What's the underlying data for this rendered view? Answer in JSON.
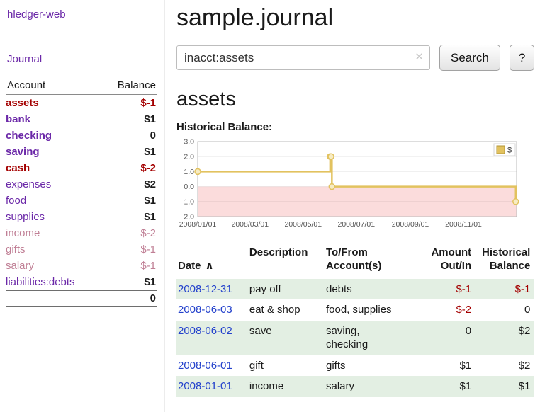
{
  "colors": {
    "purple": "#6b28a8",
    "negative": "#a40000",
    "pink": "#c07f95",
    "text": "#1a1a1a",
    "link_blue": "#2442cc",
    "row_green": "#e3efe3",
    "chart_line": "#e2c25f",
    "chart_marker_fill": "#f7ecc3",
    "chart_negative_fill": "#fbdcdc"
  },
  "sidebar": {
    "brand": "hledger-web",
    "journal_link": "Journal",
    "columns": {
      "account": "Account",
      "balance": "Balance"
    },
    "accounts": [
      {
        "name": "assets",
        "balance": "$-1",
        "indent": 0,
        "bold": true,
        "name_color": "negative",
        "balance_color": "negative",
        "balance_bold": true
      },
      {
        "name": "bank",
        "balance": "$1",
        "indent": 1,
        "bold": true,
        "name_color": "purple",
        "balance_color": "text",
        "balance_bold": true
      },
      {
        "name": "checking",
        "balance": "0",
        "indent": 2,
        "bold": true,
        "name_color": "purple",
        "balance_color": "text",
        "balance_bold": true
      },
      {
        "name": "saving",
        "balance": "$1",
        "indent": 2,
        "bold": true,
        "name_color": "purple",
        "balance_color": "text",
        "balance_bold": true
      },
      {
        "name": "cash",
        "balance": "$-2",
        "indent": 1,
        "bold": true,
        "name_color": "negative",
        "balance_color": "negative",
        "balance_bold": true
      },
      {
        "name": "expenses",
        "balance": "$2",
        "indent": 0,
        "bold": false,
        "name_color": "purple",
        "balance_color": "text",
        "balance_bold": true
      },
      {
        "name": "food",
        "balance": "$1",
        "indent": 1,
        "bold": false,
        "name_color": "purple",
        "balance_color": "text",
        "balance_bold": true
      },
      {
        "name": "supplies",
        "balance": "$1",
        "indent": 1,
        "bold": false,
        "name_color": "purple",
        "balance_color": "text",
        "balance_bold": true
      },
      {
        "name": "income",
        "balance": "$-2",
        "indent": 0,
        "bold": false,
        "name_color": "pink",
        "balance_color": "pink",
        "balance_bold": false
      },
      {
        "name": "gifts",
        "balance": "$-1",
        "indent": 1,
        "bold": false,
        "name_color": "pink",
        "balance_color": "pink",
        "balance_bold": false
      },
      {
        "name": "salary",
        "balance": "$-1",
        "indent": 1,
        "bold": false,
        "name_color": "pink",
        "balance_color": "pink",
        "balance_bold": false
      },
      {
        "name": "liabilities:debts",
        "balance": "$1",
        "indent": 0,
        "bold": false,
        "name_color": "purple",
        "balance_color": "text",
        "balance_bold": true
      }
    ],
    "total": "0"
  },
  "main": {
    "title": "sample.journal",
    "search": {
      "value": "inacct:assets",
      "clear_icon": "✕",
      "button_label": "Search",
      "help_label": "?"
    },
    "account_heading": "assets"
  },
  "chart_data": {
    "type": "line",
    "step": true,
    "title": "Historical Balance:",
    "x_range": [
      "2008-01-01",
      "2009-01-01"
    ],
    "ylim": [
      -2.0,
      3.0
    ],
    "yticks": [
      3.0,
      2.0,
      1.0,
      0.0,
      -1.0,
      -2.0
    ],
    "xticks": [
      {
        "date": "2008-01-01",
        "label": "2008/01/01"
      },
      {
        "date": "2008-03-01",
        "label": "2008/03/01"
      },
      {
        "date": "2008-05-01",
        "label": "2008/05/01"
      },
      {
        "date": "2008-07-01",
        "label": "2008/07/01"
      },
      {
        "date": "2008-09-01",
        "label": "2008/09/01"
      },
      {
        "date": "2008-11-01",
        "label": "2008/11/01"
      }
    ],
    "series": [
      {
        "name": "$",
        "points": [
          {
            "date": "2008-01-01",
            "value": 1.0
          },
          {
            "date": "2008-06-01",
            "value": 2.0
          },
          {
            "date": "2008-06-02",
            "value": 2.0
          },
          {
            "date": "2008-06-03",
            "value": 0.0
          },
          {
            "date": "2008-12-31",
            "value": -1.0
          }
        ]
      }
    ],
    "legend": {
      "label": "$",
      "position": "top-right"
    }
  },
  "register": {
    "sort_icon": "∧",
    "columns": [
      "Date",
      "Description",
      "To/From\nAccount(s)",
      "Amount\nOut/In",
      "Historical\nBalance"
    ],
    "rows": [
      {
        "date": "2008-12-31",
        "description": "pay off",
        "accounts": "debts",
        "amount": "$-1",
        "amount_negative": true,
        "balance": "$-1",
        "balance_negative": true,
        "shaded": true
      },
      {
        "date": "2008-06-03",
        "description": "eat & shop",
        "accounts": "food, supplies",
        "amount": "$-2",
        "amount_negative": true,
        "balance": "0",
        "balance_negative": false,
        "shaded": false
      },
      {
        "date": "2008-06-02",
        "description": "save",
        "accounts": "saving,\nchecking",
        "amount": "0",
        "amount_negative": false,
        "balance": "$2",
        "balance_negative": false,
        "shaded": true
      },
      {
        "date": "2008-06-01",
        "description": "gift",
        "accounts": "gifts",
        "amount": "$1",
        "amount_negative": false,
        "balance": "$2",
        "balance_negative": false,
        "shaded": false
      },
      {
        "date": "2008-01-01",
        "description": "income",
        "accounts": "salary",
        "amount": "$1",
        "amount_negative": false,
        "balance": "$1",
        "balance_negative": false,
        "shaded": true
      }
    ]
  }
}
